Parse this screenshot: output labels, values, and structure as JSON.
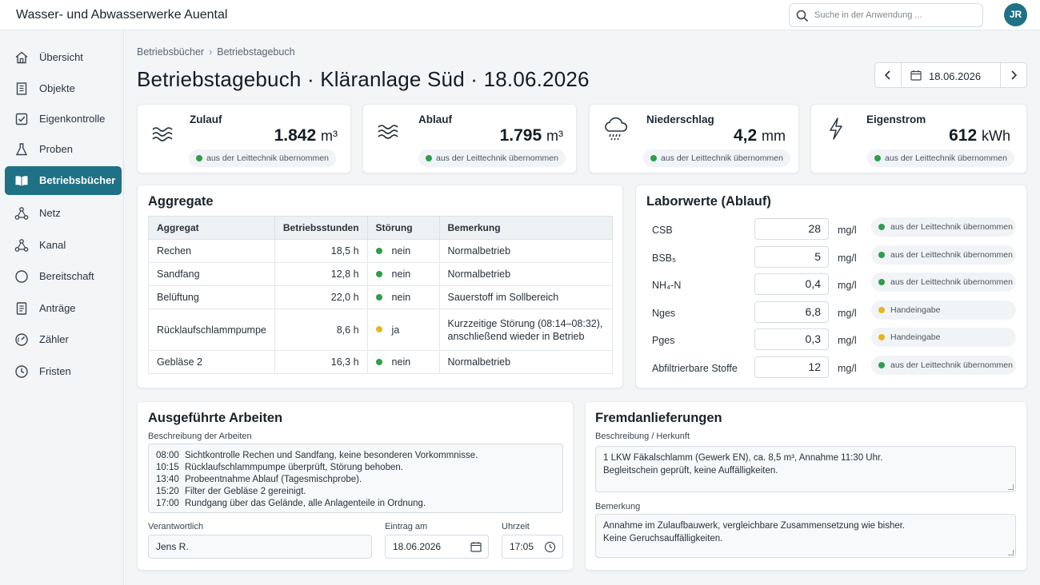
{
  "app": {
    "title": "Wasser- und Abwasserwerke Auental"
  },
  "search": {
    "placeholder": "Suche in der Anwendung ..."
  },
  "user": {
    "initials": "JR"
  },
  "sidebar": {
    "items": [
      {
        "label": "Übersicht",
        "icon": "home-icon"
      },
      {
        "label": "Objekte",
        "icon": "building-icon"
      },
      {
        "label": "Eigenkontrolle",
        "icon": "checkbox-icon"
      },
      {
        "label": "Proben",
        "icon": "flask-icon"
      },
      {
        "label": "Betriebsbücher",
        "icon": "book-icon",
        "active": true
      },
      {
        "label": "Netz",
        "icon": "network-icon"
      },
      {
        "label": "Kanal",
        "icon": "network-icon"
      },
      {
        "label": "Bereitschaft",
        "icon": "circle-icon"
      },
      {
        "label": "Anträge",
        "icon": "document-icon"
      },
      {
        "label": "Zähler",
        "icon": "gauge-icon"
      },
      {
        "label": "Fristen",
        "icon": "clock-icon"
      }
    ]
  },
  "breadcrumb": {
    "parent": "Betriebsbücher",
    "sep": "›",
    "current": "Betriebstagebuch"
  },
  "page": {
    "title": "Betriebstagebuch · Kläranlage Süd · 18.06.2026"
  },
  "date_nav": {
    "value": "18.06.2026"
  },
  "kpis": [
    {
      "label": "Zulauf",
      "value": "1.842",
      "unit": "m³",
      "badge": "aus der Leittechnik übernommen",
      "icon": "waves-icon"
    },
    {
      "label": "Ablauf",
      "value": "1.795",
      "unit": "m³",
      "badge": "aus der Leittechnik übernommen",
      "icon": "waves-icon"
    },
    {
      "label": "Niederschlag",
      "value": "4,2",
      "unit": "mm",
      "badge": "aus der Leittechnik übernommen",
      "icon": "rain-cloud-icon"
    },
    {
      "label": "Eigenstrom",
      "value": "612",
      "unit": "kWh",
      "badge": "aus der Leittechnik übernommen",
      "icon": "lightning-icon"
    }
  ],
  "aggregate": {
    "title": "Aggregate",
    "headers": [
      "Aggregat",
      "Betriebsstunden",
      "Störung",
      "Bemerkung"
    ],
    "rows": [
      {
        "name": "Rechen",
        "hours": "18,5 h",
        "fault": "nein",
        "status": "ok",
        "note1": "Normalbetrieb",
        "note2": ""
      },
      {
        "name": "Sandfang",
        "hours": "12,8 h",
        "fault": "nein",
        "status": "ok",
        "note1": "Normalbetrieb",
        "note2": ""
      },
      {
        "name": "Belüftung",
        "hours": "22,0 h",
        "fault": "nein",
        "status": "ok",
        "note1": "Sauerstoff im Sollbereich",
        "note2": ""
      },
      {
        "name": "Rücklaufschlammpumpe",
        "hours": "8,6 h",
        "fault": "ja",
        "status": "warn",
        "note1": "Kurzzeitige Störung (08:14–08:32),",
        "note2": "anschließend wieder in Betrieb"
      },
      {
        "name": "Gebläse 2",
        "hours": "16,3 h",
        "fault": "nein",
        "status": "ok",
        "note1": "Normalbetrieb",
        "note2": ""
      }
    ]
  },
  "lab": {
    "title": "Laborwerte (Ablauf)",
    "rows": [
      {
        "name": "CSB",
        "value": "28",
        "unit": "mg/l",
        "source": "aus der Leittechnik übernommen",
        "status": "ok"
      },
      {
        "name": "BSB₅",
        "value": "5",
        "unit": "mg/l",
        "source": "aus der Leittechnik übernommen",
        "status": "ok"
      },
      {
        "name": "NH₄-N",
        "value": "0,4",
        "unit": "mg/l",
        "source": "aus der Leittechnik übernommen",
        "status": "ok"
      },
      {
        "name": "Nges",
        "value": "6,8",
        "unit": "mg/l",
        "source": "Handeingabe",
        "status": "manual"
      },
      {
        "name": "Pges",
        "value": "0,3",
        "unit": "mg/l",
        "source": "Handeingabe",
        "status": "manual"
      },
      {
        "name": "Abfiltrierbare Stoffe",
        "value": "12",
        "unit": "mg/l",
        "source": "aus der Leittechnik übernommen",
        "status": "ok"
      }
    ]
  },
  "works": {
    "title": "Ausgeführte Arbeiten",
    "desc_label": "Beschreibung der Arbeiten",
    "entries": [
      {
        "time": "08:00",
        "text": "Sichtkontrolle Rechen und Sandfang, keine besonderen Vorkommnisse."
      },
      {
        "time": "10:15",
        "text": "Rücklaufschlammpumpe überprüft, Störung behoben."
      },
      {
        "time": "13:40",
        "text": "Probeentnahme Ablauf (Tagesmischprobe)."
      },
      {
        "time": "15:20",
        "text": "Filter der Gebläse 2 gereinigt."
      },
      {
        "time": "17:00",
        "text": "Rundgang über das Gelände, alle Anlagenteile in Ordnung."
      }
    ],
    "responsible_label": "Verantwortlich",
    "responsible": "Jens R.",
    "date_label": "Eintrag am",
    "date": "18.06.2026",
    "time_label": "Uhrzeit",
    "time": "17:05"
  },
  "deliveries": {
    "title": "Fremdanlieferungen",
    "desc_label": "Beschreibung / Herkunft",
    "desc_line1": "1 LKW Fäkalschlamm (Gewerk EN), ca. 8,5 m³, Annahme 11:30 Uhr.",
    "desc_line2": "Begleitschein geprüft, keine Auffälligkeiten.",
    "remark_label": "Bemerkung",
    "remark_line1": "Annahme im Zulaufbauwerk, vergleichbare Zusammensetzung wie bisher.",
    "remark_line2": "Keine Geruchsauffälligkeiten."
  },
  "colors": {
    "accent": "#1f7185",
    "ok": "#2e9e4a",
    "warn": "#e8b521"
  }
}
